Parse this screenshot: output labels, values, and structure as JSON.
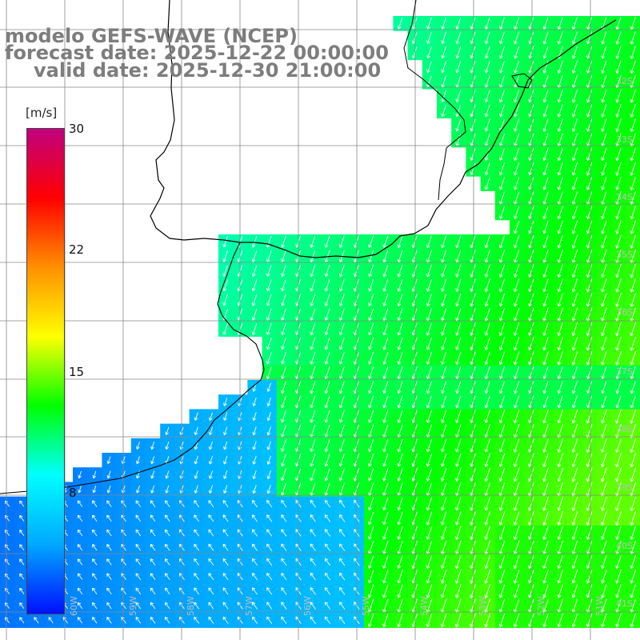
{
  "titles": {
    "model": "modelo GEFS-WAVE (NCEP)",
    "forecast": "forecast date: 2025-12-22 00:00:00",
    "valid": "valid date: 2025-12-30 21:00:00"
  },
  "colorbar": {
    "unit": "[m/s]",
    "ticks": [
      "30",
      "22",
      "15",
      "8"
    ],
    "tick_values": [
      30,
      22,
      15,
      8
    ],
    "colors": [
      "#0010ff",
      "#00a8ff",
      "#00ffff",
      "#00ff00",
      "#ffff00",
      "#ff9000",
      "#ff0000",
      "#c00080"
    ]
  },
  "axes": {
    "lat_labels": [
      "32S",
      "33S",
      "34S",
      "35S",
      "36S",
      "37S",
      "38S",
      "39S",
      "40S",
      "41S"
    ],
    "lon_labels": [
      "60W",
      "59W",
      "58W",
      "57W",
      "56W",
      "55W",
      "54W",
      "53W",
      "52W",
      "51W"
    ]
  },
  "field": {
    "variable": "wind speed",
    "units": "m/s"
  }
}
